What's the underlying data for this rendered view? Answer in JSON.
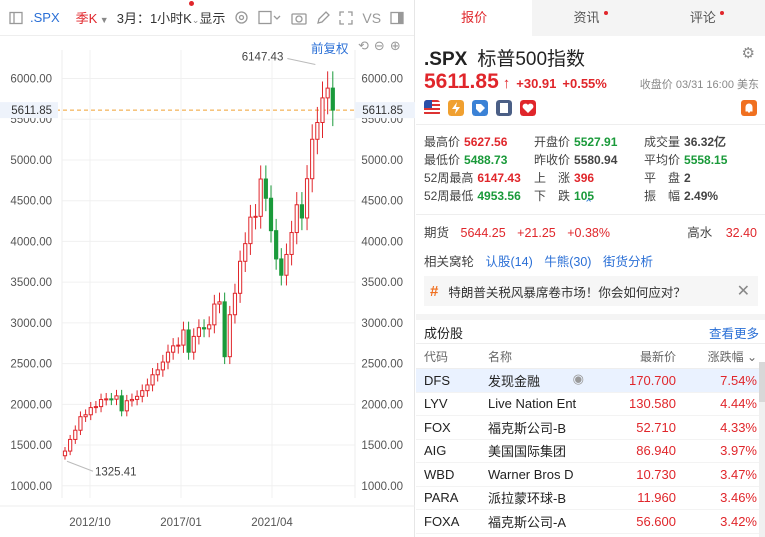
{
  "toolbar": {
    "symbol": ".SPX",
    "period": "季K",
    "range": "3月：1小时K",
    "display": "显示",
    "vs": "VS"
  },
  "chart": {
    "adjust_label": "前复权",
    "current_price_label": "5611.85",
    "max_label": "6147.43",
    "min_label": "1325.41"
  },
  "chart_data": {
    "type": "candlestick",
    "y_ticks": [
      1000,
      1500,
      2000,
      2500,
      3000,
      3500,
      4000,
      4500,
      5000,
      5500,
      6000
    ],
    "y_tick_labels": [
      "1000.00",
      "1500.00",
      "2000.00",
      "2500.00",
      "3000.00",
      "3500.00",
      "4000.00",
      "4500.00",
      "5000.00",
      "5500.00",
      "6000.00"
    ],
    "x_tick_labels": [
      "2012/10",
      "2017/01",
      "2021/04"
    ],
    "ylim": [
      850,
      6350
    ],
    "reference_price": 5611.85,
    "annotations": [
      {
        "text": "6147.43",
        "value": 6147.43
      },
      {
        "text": "1325.41",
        "value": 1325.41
      }
    ],
    "closes": [
      1426,
      1569,
      1682,
      1848,
      1872,
      1960,
      1972,
      2059,
      2067,
      2063,
      2104,
      1920,
      2044,
      2060,
      2098,
      2168,
      2238,
      2363,
      2423,
      2519,
      2640,
      2718,
      2727,
      2913,
      2640,
      2834,
      2941,
      2926,
      2976,
      3231,
      3258,
      2585,
      3100,
      3363,
      3756,
      3973,
      4298,
      4308,
      4766,
      4530,
      4132,
      3785,
      3585,
      3840,
      4109,
      4450,
      4288,
      4770,
      5254,
      5460,
      5762,
      5882,
      5612
    ]
  },
  "tabs": [
    {
      "label": "报价",
      "active": true
    },
    {
      "label": "资讯",
      "dot": true
    },
    {
      "label": "评论",
      "dot": true
    }
  ],
  "quote": {
    "symbol": ".SPX",
    "name": "标普500指数",
    "price": "5611.85",
    "change": "+30.91",
    "change_pct": "+0.55%",
    "close_info": "收盘价 03/31 16:00 美东",
    "stats": [
      {
        "label": "最高价",
        "value": "5627.56",
        "color": "up"
      },
      {
        "label": "开盘价",
        "value": "5527.91",
        "color": "dn"
      },
      {
        "label": "成交量",
        "value": "36.32亿",
        "color": "plain"
      },
      {
        "label": "最低价",
        "value": "5488.73",
        "color": "dn"
      },
      {
        "label": "昨收价",
        "value": "5580.94",
        "color": "plain"
      },
      {
        "label": "平均价",
        "value": "5558.15",
        "color": "dn"
      },
      {
        "label": "52周最高",
        "value": "6147.43",
        "color": "up"
      },
      {
        "label": "上　涨",
        "value": "396",
        "color": "up"
      },
      {
        "label": "平　盘",
        "value": "2",
        "color": "plain"
      },
      {
        "label": "52周最低",
        "value": "4953.56",
        "color": "dn"
      },
      {
        "label": "下　跌",
        "value": "105",
        "color": "dn"
      },
      {
        "label": "振　幅",
        "value": "2.49%",
        "color": "plain"
      }
    ],
    "futures": {
      "label": "期货",
      "price": "5644.25",
      "change": "+21.25",
      "pct": "+0.38%",
      "water_label": "高水",
      "water_value": "32.40"
    },
    "related": {
      "label": "相关窝轮",
      "items": [
        "认股(14)",
        "牛熊(30)",
        "街货分析"
      ]
    },
    "promo": "特朗普关税风暴席卷市场！你会如何应对？"
  },
  "components": {
    "title": "成份股",
    "more": "查看更多",
    "headers": [
      "代码",
      "名称",
      "最新价",
      "涨跌幅"
    ],
    "rows": [
      {
        "code": "DFS",
        "name": "发现金融",
        "price": "170.700",
        "pct": "7.54%"
      },
      {
        "code": "LYV",
        "name": "Live Nation Ent",
        "price": "130.580",
        "pct": "4.44%"
      },
      {
        "code": "FOX",
        "name": "福克斯公司-B",
        "price": "52.710",
        "pct": "4.33%"
      },
      {
        "code": "AIG",
        "name": "美国国际集团",
        "price": "86.940",
        "pct": "3.97%"
      },
      {
        "code": "WBD",
        "name": "Warner Bros D",
        "price": "10.730",
        "pct": "3.47%"
      },
      {
        "code": "PARA",
        "name": "派拉蒙环球-B",
        "price": "11.960",
        "pct": "3.46%"
      },
      {
        "code": "FOXA",
        "name": "福克斯公司-A",
        "price": "56.600",
        "pct": "3.42%"
      }
    ]
  },
  "colors": {
    "up": "#e0262b",
    "down": "#1a9a3a",
    "accent": "#2a6fd6",
    "ref_line": "#f0a030"
  }
}
